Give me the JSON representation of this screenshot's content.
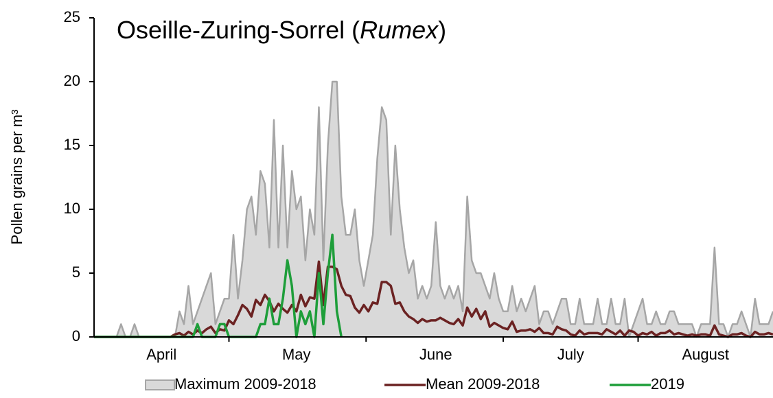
{
  "chart_data": {
    "type": "line",
    "title": [
      "Oseille-Zuring-Sorrel (",
      "Rumex",
      ")"
    ],
    "y_label": "Pollen grains per m³",
    "ylim": [
      0,
      25
    ],
    "yticks": [
      0,
      5,
      10,
      15,
      20,
      25
    ],
    "grid": false,
    "legend": "bottom",
    "categories": [
      null,
      null,
      null,
      null,
      null,
      null,
      null,
      null,
      null,
      null,
      null,
      null,
      null,
      null,
      null,
      "April",
      null,
      null,
      null,
      null,
      null,
      null,
      null,
      null,
      null,
      null,
      null,
      null,
      null,
      null,
      null,
      null,
      null,
      null,
      null,
      null,
      null,
      null,
      null,
      null,
      null,
      null,
      null,
      null,
      null,
      "May",
      null,
      null,
      null,
      null,
      null,
      null,
      null,
      null,
      null,
      null,
      null,
      null,
      null,
      null,
      null,
      null,
      null,
      null,
      null,
      null,
      null,
      null,
      null,
      null,
      null,
      null,
      null,
      null,
      null,
      null,
      "June",
      null,
      null,
      null,
      null,
      null,
      null,
      null,
      null,
      null,
      null,
      null,
      null,
      null,
      null,
      null,
      null,
      null,
      null,
      null,
      null,
      null,
      null,
      null,
      null,
      null,
      null,
      null,
      null,
      null,
      "July",
      null,
      null,
      null,
      null,
      null,
      null,
      null,
      null,
      null,
      null,
      null,
      null,
      null,
      null,
      null,
      null,
      null,
      null,
      null,
      null,
      null,
      null,
      null,
      null,
      null,
      null,
      null,
      null,
      null,
      "August",
      null,
      null,
      null,
      null,
      null,
      null,
      null,
      null,
      null,
      null,
      null,
      null,
      null,
      null,
      null
    ],
    "series": [
      {
        "name": "Maximum 2009-2018",
        "style": "area",
        "color": "#a6a6a6",
        "fill": "#d9d9d9",
        "values": [
          0,
          0,
          0,
          0,
          0,
          0,
          1,
          0,
          0,
          1,
          0,
          0,
          0,
          0,
          0,
          0,
          0,
          0,
          0,
          2,
          1,
          4,
          1,
          2,
          3,
          4,
          5,
          1,
          2,
          3,
          3,
          8,
          3,
          6,
          10,
          11,
          8,
          13,
          12,
          7,
          17,
          7,
          15,
          7,
          13,
          10,
          11,
          6,
          10,
          8,
          18,
          6,
          15,
          20,
          20,
          11,
          8,
          8,
          10,
          6,
          4,
          6,
          8,
          14,
          18,
          17,
          8,
          15,
          10,
          7,
          5,
          6,
          3,
          4,
          3,
          4,
          9,
          4,
          3,
          4,
          3,
          4,
          2,
          11,
          6,
          5,
          5,
          4,
          3,
          5,
          3,
          2,
          2,
          4,
          2,
          3,
          2,
          3,
          4,
          1,
          2,
          2,
          1,
          2,
          3,
          3,
          1,
          1,
          3,
          1,
          1,
          1,
          3,
          1,
          1,
          3,
          1,
          1,
          3,
          0,
          1,
          2,
          3,
          1,
          1,
          2,
          1,
          1,
          2,
          2,
          1,
          1,
          1,
          1,
          0,
          1,
          1,
          1,
          7,
          1,
          1,
          0,
          1,
          1,
          2,
          1,
          0,
          3,
          1,
          1,
          1,
          2
        ]
      },
      {
        "name": "Mean 2009-2018",
        "style": "line",
        "color": "#6b2222",
        "values": [
          0,
          0,
          0,
          0,
          0,
          0,
          0,
          0,
          0,
          0,
          0,
          0,
          0,
          0,
          0,
          0,
          0,
          0,
          0.2,
          0.3,
          0.1,
          0.4,
          0.2,
          0.5,
          0.3,
          0.6,
          0.8,
          0.3,
          0.6,
          0.5,
          1.3,
          1.0,
          1.7,
          2.5,
          2.2,
          1.6,
          2.9,
          2.5,
          3.3,
          2.8,
          2.0,
          2.6,
          2.2,
          1.9,
          2.5,
          2.0,
          3.3,
          2.4,
          3.1,
          3.0,
          5.9,
          2.5,
          5.5,
          5.5,
          5.3,
          4.0,
          3.3,
          3.2,
          2.3,
          1.9,
          2.5,
          2.0,
          2.7,
          2.6,
          4.3,
          4.3,
          4.0,
          2.6,
          2.7,
          2.0,
          1.6,
          1.4,
          1.1,
          1.4,
          1.2,
          1.3,
          1.3,
          1.5,
          1.3,
          1.1,
          1.0,
          1.4,
          0.9,
          2.3,
          1.6,
          2.2,
          1.4,
          2.0,
          0.8,
          1.1,
          0.9,
          0.7,
          0.6,
          1.2,
          0.4,
          0.5,
          0.5,
          0.6,
          0.4,
          0.7,
          0.3,
          0.3,
          0.2,
          0.8,
          0.6,
          0.5,
          0.2,
          0.1,
          0.5,
          0.2,
          0.3,
          0.3,
          0.3,
          0.2,
          0.6,
          0.4,
          0.2,
          0.5,
          0.1,
          0.5,
          0.4,
          0.1,
          0.3,
          0.2,
          0.4,
          0.1,
          0.3,
          0.3,
          0.5,
          0.2,
          0.3,
          0.2,
          0.1,
          0.2,
          0.1,
          0.2,
          0.2,
          0.1,
          0.9,
          0.2,
          0.1,
          0,
          0.2,
          0.2,
          0.3,
          0.1,
          0,
          0.4,
          0.2,
          0.2,
          0.3,
          0.2
        ]
      },
      {
        "name": "2019",
        "style": "line",
        "color": "#1e9e3a",
        "values": [
          0,
          0,
          0,
          0,
          0,
          0,
          0,
          0,
          0,
          0,
          0,
          0,
          0,
          0,
          0,
          0,
          0,
          0,
          0,
          0,
          0,
          0,
          0,
          1,
          0,
          0,
          0,
          0,
          1,
          1,
          0,
          0,
          0,
          0,
          0,
          0,
          0,
          1,
          1,
          3,
          1,
          1,
          3,
          6,
          4,
          0,
          2,
          1,
          2,
          0,
          5,
          1,
          5,
          8,
          2,
          0,
          null,
          null,
          null,
          null,
          null,
          null,
          null,
          null,
          null,
          null,
          null,
          null,
          null,
          null,
          null,
          null,
          null,
          null,
          null,
          null,
          null,
          null,
          null,
          null,
          null,
          null,
          null,
          null,
          null,
          null,
          null,
          null,
          null,
          null,
          null,
          null,
          null,
          null,
          null,
          null,
          null,
          null,
          null,
          null,
          null,
          null,
          null,
          null,
          null,
          null,
          null,
          null,
          null,
          null,
          null,
          null,
          null,
          null,
          null,
          null,
          null,
          null,
          null,
          null,
          null,
          null,
          null,
          null,
          null,
          null,
          null,
          null,
          null,
          null,
          null,
          null,
          null,
          null,
          null,
          null,
          null,
          null,
          null,
          null,
          null,
          null,
          null,
          null,
          null,
          null,
          null,
          null,
          null,
          null,
          null,
          null
        ]
      }
    ]
  }
}
